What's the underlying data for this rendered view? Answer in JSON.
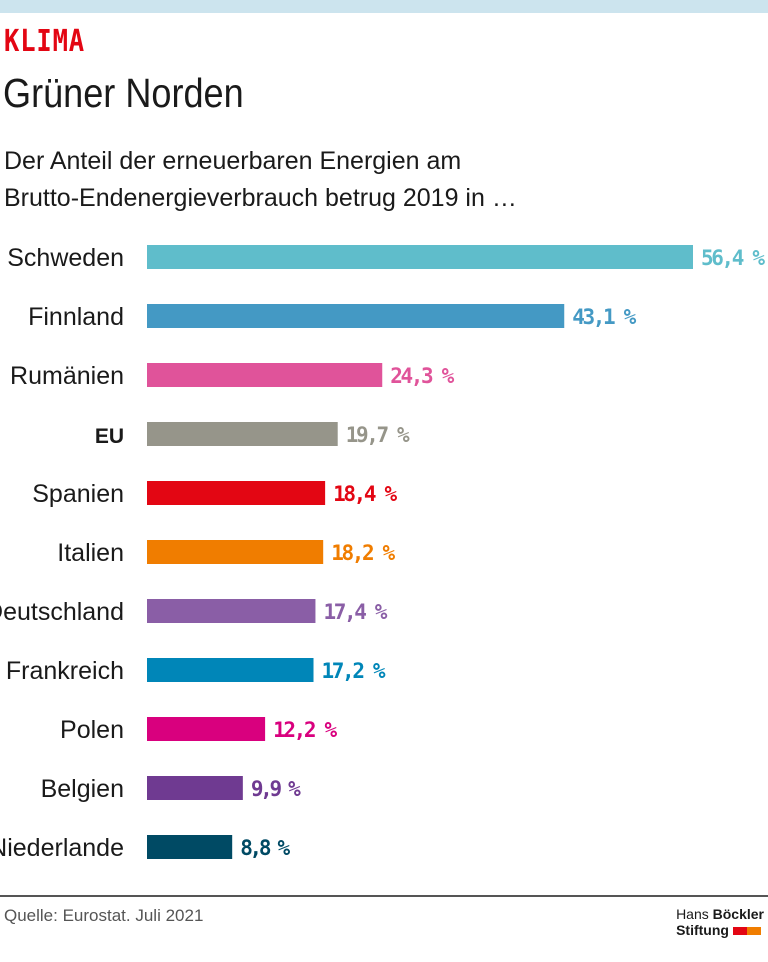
{
  "header": {
    "kicker": "KLIMA",
    "title": "Grüner Norden",
    "subtitle_line1": "Der Anteil der erneuerbaren Energien am",
    "subtitle_line2": "Brutto-Endenergieverbrauch betrug 2019 in  …"
  },
  "chart_data": {
    "type": "bar",
    "orientation": "horizontal",
    "unit": "%",
    "categories": [
      "Schweden",
      "Finnland",
      "Rumänien",
      "EU",
      "Spanien",
      "Italien",
      "Deutschland",
      "Frankreich",
      "Polen",
      "Belgien",
      "Niederlande"
    ],
    "values": [
      56.4,
      43.1,
      24.3,
      19.7,
      18.4,
      18.2,
      17.4,
      17.2,
      12.2,
      9.9,
      8.8
    ],
    "value_labels": [
      "56,4 %",
      "43,1 %",
      "24,3 %",
      "19,7 %",
      "18,4 %",
      "18,2 %",
      "17,4 %",
      "17,2 %",
      "12,2 %",
      "9,9 %",
      "8,8 %"
    ],
    "colors": [
      "#5fbdcb",
      "#4499c4",
      "#e0539a",
      "#96958a",
      "#e30613",
      "#f07d00",
      "#8a5ea6",
      "#0086b8",
      "#d9007e",
      "#6f3a91",
      "#004a64"
    ],
    "highlight_category": "EU",
    "grid": false
  },
  "footer": {
    "source": "Quelle: Eurostat. Juli 2021",
    "logo_line1_a": "Hans",
    "logo_line1_b": "Böckler",
    "logo_line2": "Stiftung"
  }
}
